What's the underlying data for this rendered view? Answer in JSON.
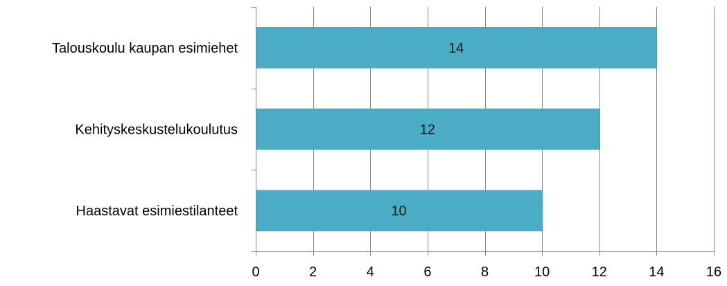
{
  "chart_data": {
    "type": "bar",
    "orientation": "horizontal",
    "categories": [
      "Talouskoulu kaupan esimiehet",
      "Kehityskeskustelukoulutus",
      "Haastavat esimiestilanteet"
    ],
    "values": [
      14,
      12,
      10
    ],
    "data_labels": [
      "14",
      "12",
      "10"
    ],
    "x_ticks": [
      "0",
      "2",
      "4",
      "6",
      "8",
      "10",
      "12",
      "14",
      "16"
    ],
    "xlim": [
      0,
      16
    ],
    "grid": "vertical",
    "legend": "none",
    "title": "",
    "xlabel": "",
    "ylabel": ""
  },
  "colors": {
    "bar": "#4BACC6",
    "bar_edge": "#3A95AD",
    "grid": "#868686",
    "axis": "#868686"
  }
}
